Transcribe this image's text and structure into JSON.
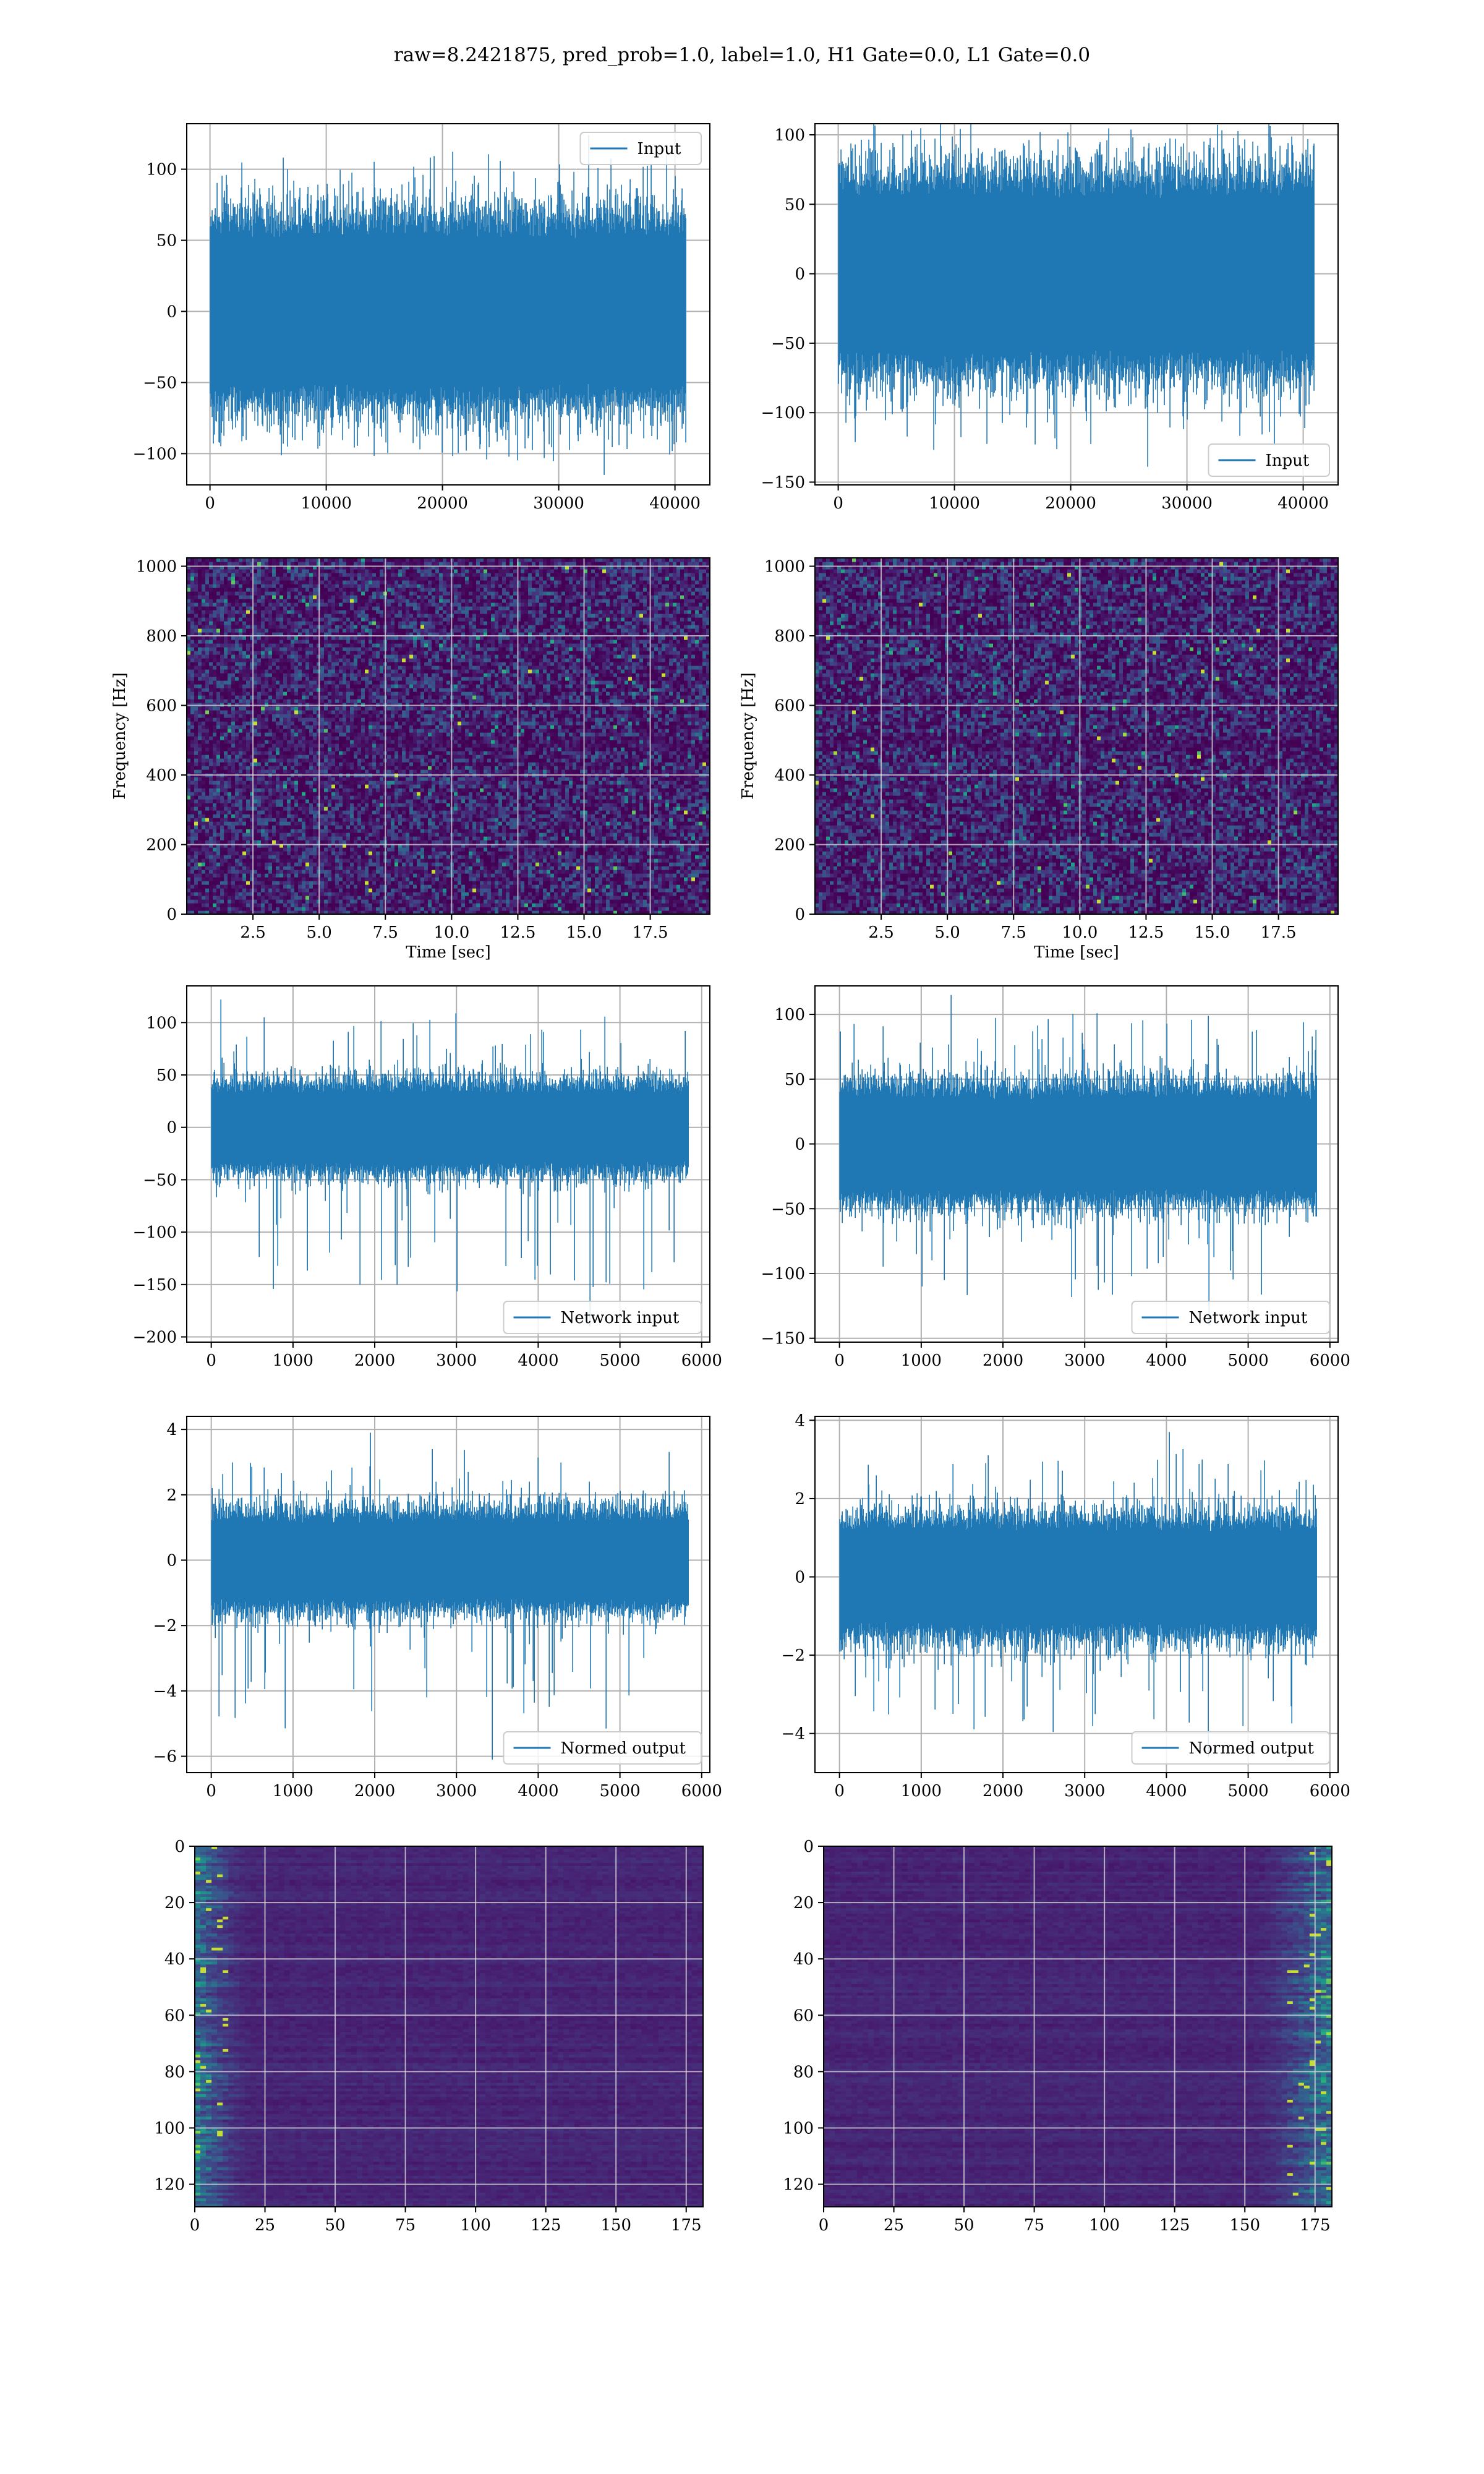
{
  "figure": {
    "suptitle": "raw=8.2421875, pred_prob=1.0, label=1.0, H1 Gate=0.0, L1 Gate=0.0"
  },
  "chart_data": [
    {
      "id": "h1-input",
      "type": "line",
      "title": "",
      "series": [
        {
          "name": "Input",
          "color": "#1f77b4",
          "n_samples": 40960,
          "mean": 0,
          "typical_amplitude": 70,
          "min": -115,
          "max": 124
        }
      ],
      "xlim": [
        -2000,
        43000
      ],
      "ylim": [
        -122,
        132
      ],
      "xticks": [
        0,
        10000,
        20000,
        30000,
        40000
      ],
      "yticks": [
        -100,
        -50,
        0,
        50,
        100
      ],
      "legend": "upper right",
      "grid": true
    },
    {
      "id": "l1-input",
      "type": "line",
      "title": "",
      "series": [
        {
          "name": "Input",
          "color": "#1f77b4",
          "n_samples": 40960,
          "mean": 0,
          "typical_amplitude": 75,
          "min": -139,
          "max": 114
        }
      ],
      "xlim": [
        -2000,
        43000
      ],
      "ylim": [
        -152,
        108
      ],
      "xticks": [
        0,
        10000,
        20000,
        30000,
        40000
      ],
      "yticks": [
        -150,
        -100,
        -50,
        0,
        50,
        100
      ],
      "legend": "lower right",
      "grid": true
    },
    {
      "id": "h1-spectrogram",
      "type": "heatmap",
      "title": "",
      "x_range": [
        0,
        19.75
      ],
      "y_range": [
        0,
        1024
      ],
      "xlabel": "Time [sec]",
      "ylabel": "Frequency [Hz]",
      "xticks": [
        2.5,
        5.0,
        7.5,
        10.0,
        12.5,
        15.0,
        17.5
      ],
      "yticks": [
        0,
        200,
        400,
        600,
        800,
        1000
      ],
      "colormap": "viridis",
      "grid": true,
      "notes": "mostly dark purple noise, a dimmer band near 470-510 Hz"
    },
    {
      "id": "l1-spectrogram",
      "type": "heatmap",
      "title": "",
      "x_range": [
        0,
        19.75
      ],
      "y_range": [
        0,
        1024
      ],
      "xlabel": "Time [sec]",
      "ylabel": "Frequency [Hz]",
      "xticks": [
        2.5,
        5.0,
        7.5,
        10.0,
        12.5,
        15.0,
        17.5
      ],
      "yticks": [
        0,
        200,
        400,
        600,
        800,
        1000
      ],
      "colormap": "viridis",
      "grid": true,
      "notes": "mostly dark purple noise, a dimmer band near 470-510 Hz"
    },
    {
      "id": "h1-network-input",
      "type": "line",
      "title": "",
      "series": [
        {
          "name": "Network input",
          "color": "#1f77b4",
          "n_samples": 5840,
          "mean": 0,
          "typical_amplitude": 45,
          "min": -190,
          "max": 122
        }
      ],
      "xlim": [
        -300,
        6100
      ],
      "ylim": [
        -205,
        135
      ],
      "xticks": [
        0,
        1000,
        2000,
        3000,
        4000,
        5000,
        6000
      ],
      "yticks": [
        -200,
        -150,
        -100,
        -50,
        0,
        50,
        100
      ],
      "legend": "lower right",
      "grid": true
    },
    {
      "id": "l1-network-input",
      "type": "line",
      "title": "",
      "series": [
        {
          "name": "Network input",
          "color": "#1f77b4",
          "n_samples": 5840,
          "mean": 0,
          "typical_amplitude": 48,
          "min": -140,
          "max": 115
        }
      ],
      "xlim": [
        -300,
        6100
      ],
      "ylim": [
        -153,
        122
      ],
      "xticks": [
        0,
        1000,
        2000,
        3000,
        4000,
        5000,
        6000
      ],
      "yticks": [
        -150,
        -100,
        -50,
        0,
        50,
        100
      ],
      "legend": "lower right",
      "grid": true
    },
    {
      "id": "h1-normed-output",
      "type": "line",
      "title": "",
      "series": [
        {
          "name": "Normed output",
          "color": "#1f77b4",
          "n_samples": 5840,
          "mean": 0,
          "typical_amplitude": 1.6,
          "min": -6.1,
          "max": 3.9
        }
      ],
      "xlim": [
        -300,
        6100
      ],
      "ylim": [
        -6.5,
        4.4
      ],
      "xticks": [
        0,
        1000,
        2000,
        3000,
        4000,
        5000,
        6000
      ],
      "yticks": [
        -6,
        -4,
        -2,
        0,
        2,
        4
      ],
      "legend": "lower right",
      "grid": true
    },
    {
      "id": "l1-normed-output",
      "type": "line",
      "title": "",
      "series": [
        {
          "name": "Normed output",
          "color": "#1f77b4",
          "n_samples": 5840,
          "mean": 0,
          "typical_amplitude": 1.6,
          "min": -4.6,
          "max": 3.7
        }
      ],
      "xlim": [
        -300,
        6100
      ],
      "ylim": [
        -5.0,
        4.1
      ],
      "xticks": [
        0,
        1000,
        2000,
        3000,
        4000,
        5000,
        6000
      ],
      "yticks": [
        -4,
        -2,
        0,
        2,
        4
      ],
      "legend": "lower right",
      "grid": true
    },
    {
      "id": "h1-feature-map",
      "type": "heatmap",
      "title": "",
      "x_range": [
        0,
        181
      ],
      "y_range": [
        128,
        0
      ],
      "xticks": [
        0,
        25,
        50,
        75,
        100,
        125,
        150,
        175
      ],
      "yticks": [
        0,
        20,
        40,
        60,
        80,
        100,
        120
      ],
      "colormap": "viridis",
      "grid": true,
      "notes": "bright activations concentrated in columns 0-25"
    },
    {
      "id": "l1-feature-map",
      "type": "heatmap",
      "title": "",
      "x_range": [
        0,
        181
      ],
      "y_range": [
        128,
        0
      ],
      "xticks": [
        0,
        25,
        50,
        75,
        100,
        125,
        150,
        175
      ],
      "yticks": [
        0,
        20,
        40,
        60,
        80,
        100,
        120
      ],
      "colormap": "viridis",
      "grid": true,
      "notes": "bright activations concentrated in columns 150-181"
    }
  ]
}
